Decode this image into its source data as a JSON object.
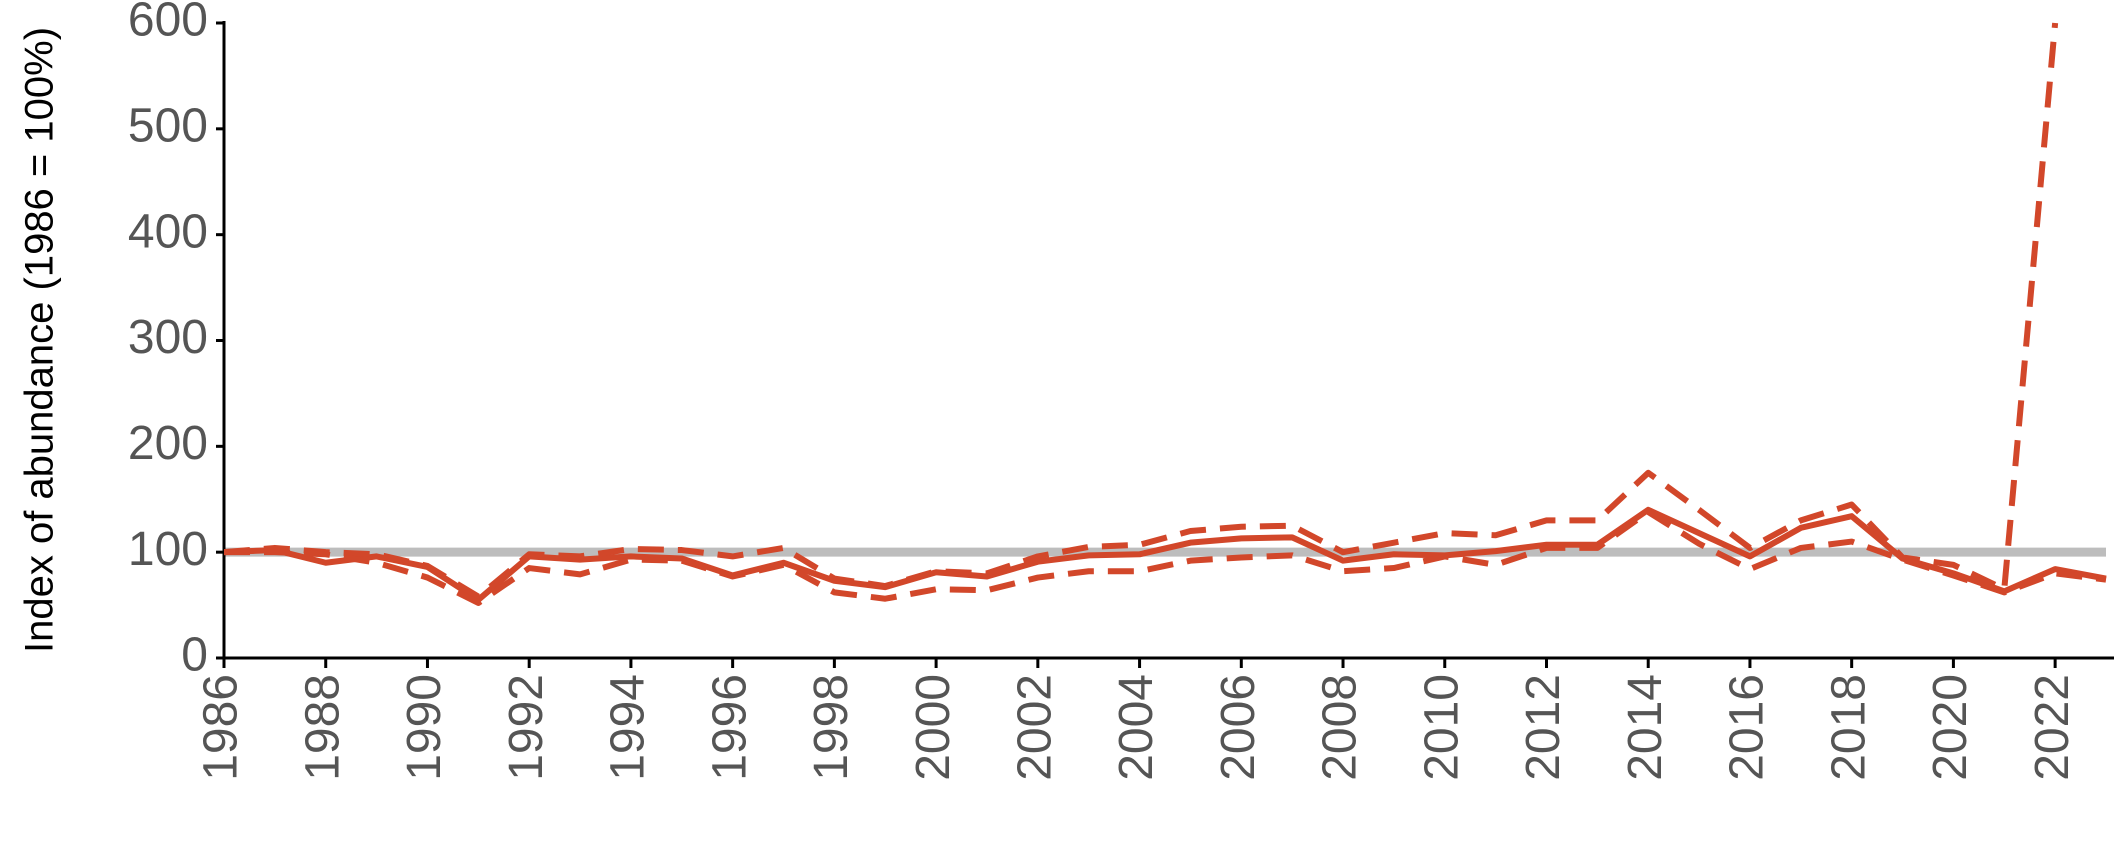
{
  "chart_data": {
    "type": "line",
    "y_label": "Index of abundance (1986 = 100%)",
    "x": [
      1986,
      1987,
      1988,
      1989,
      1990,
      1991,
      1992,
      1993,
      1994,
      1995,
      1996,
      1997,
      1998,
      1999,
      2000,
      2001,
      2002,
      2003,
      2004,
      2005,
      2006,
      2007,
      2008,
      2009,
      2010,
      2011,
      2012,
      2013,
      2014,
      2015,
      2016,
      2017,
      2018,
      2019,
      2020,
      2021,
      2022,
      2023
    ],
    "series": [
      {
        "color": "#d2472a",
        "style": "solid",
        "values": [
          100,
          102,
          90,
          96,
          86,
          55,
          96,
          93,
          96,
          94,
          78,
          90,
          73,
          67,
          81,
          77,
          91,
          97,
          98,
          109,
          113,
          114,
          92,
          98,
          97,
          101,
          107,
          107,
          140,
          118,
          96,
          123,
          134,
          94,
          80,
          63,
          84,
          75
        ]
      },
      {
        "color": "#d2472a",
        "style": "dashed",
        "values": [
          100,
          104,
          100,
          98,
          87,
          58,
          98,
          96,
          103,
          102,
          96,
          104,
          75,
          68,
          82,
          80,
          96,
          105,
          107,
          120,
          124,
          125,
          100,
          109,
          118,
          116,
          130,
          130,
          175,
          140,
          104,
          130,
          145,
          95,
          88,
          65,
          600,
          null
        ]
      },
      {
        "color": "#d2472a",
        "style": "dashed",
        "values": [
          100,
          100,
          98,
          90,
          76,
          52,
          85,
          79,
          93,
          92,
          77,
          88,
          62,
          56,
          65,
          64,
          76,
          82,
          82,
          92,
          95,
          97,
          82,
          85,
          96,
          88,
          104,
          104,
          138,
          108,
          84,
          104,
          110,
          93,
          78,
          62,
          80,
          74
        ]
      }
    ],
    "reference_value": 100,
    "reference_color": "#bdbdbd",
    "xlim": [
      1986,
      2023
    ],
    "xticks": [
      1986,
      1988,
      1990,
      1992,
      1994,
      1996,
      1998,
      2000,
      2002,
      2004,
      2006,
      2008,
      2010,
      2012,
      2014,
      2016,
      2018,
      2020,
      2022
    ],
    "ylim": [
      0,
      600
    ],
    "yticks": [
      0,
      100,
      200,
      300,
      400,
      500,
      600
    ]
  }
}
